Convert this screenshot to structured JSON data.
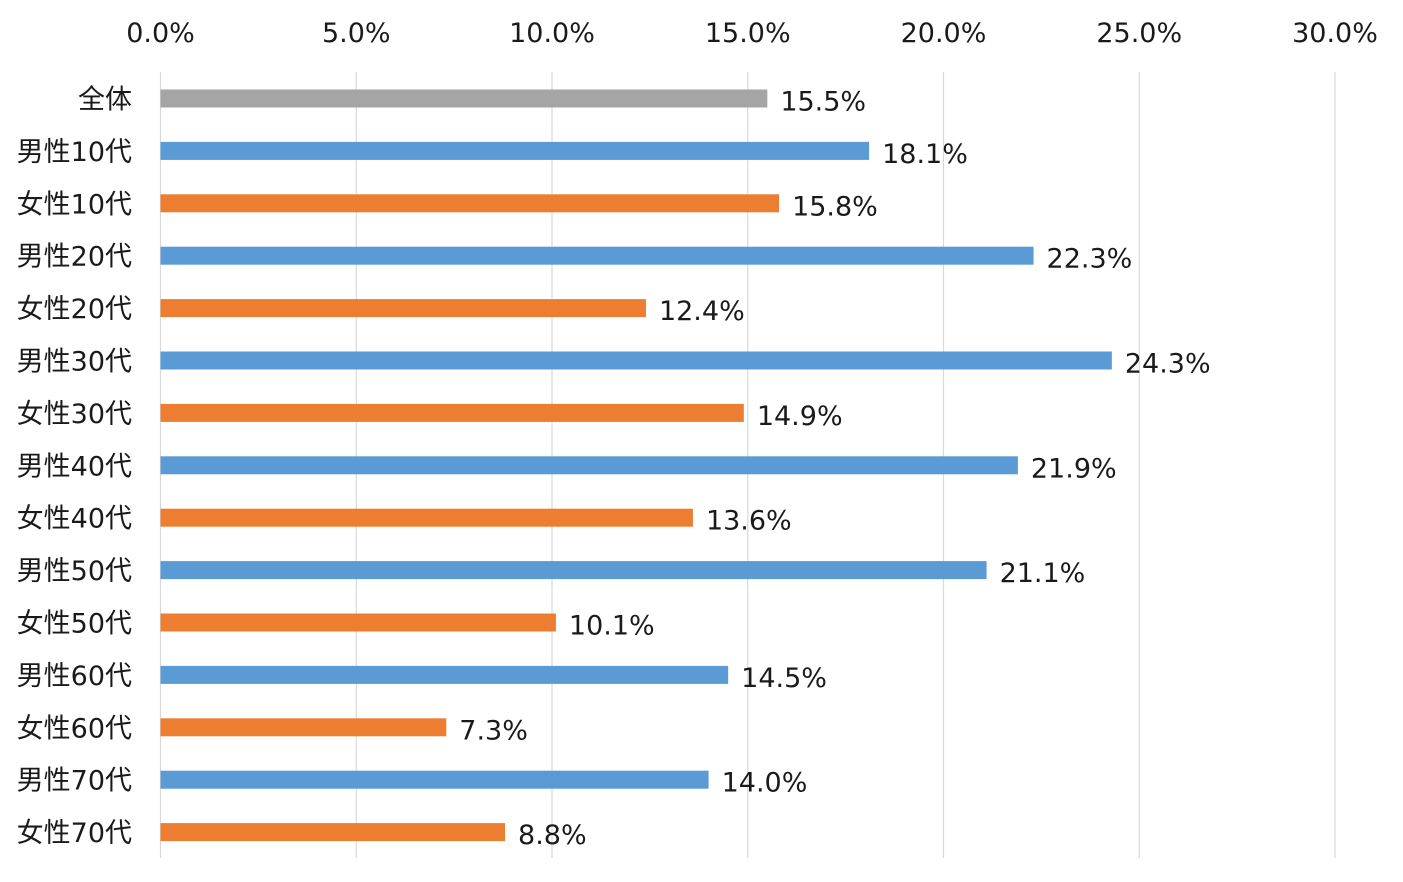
{
  "chart_data": {
    "type": "bar",
    "orientation": "horizontal",
    "title": "",
    "xlabel": "",
    "ylabel": "",
    "xlim": [
      0,
      30
    ],
    "x_ticks": [
      0,
      5,
      10,
      15,
      20,
      25,
      30
    ],
    "x_tick_labels": [
      "0.0%",
      "5.0%",
      "10.0%",
      "15.0%",
      "20.0%",
      "25.0%",
      "30.0%"
    ],
    "x_axis_position": "top",
    "grid": true,
    "legend": "none",
    "categories": [
      "全体",
      "男性10代",
      "女性10代",
      "男性20代",
      "女性20代",
      "男性30代",
      "女性30代",
      "男性40代",
      "女性40代",
      "男性50代",
      "女性50代",
      "男性60代",
      "女性60代",
      "男性70代",
      "女性70代"
    ],
    "values": [
      15.5,
      18.1,
      15.8,
      22.3,
      12.4,
      24.3,
      14.9,
      21.9,
      13.6,
      21.1,
      10.1,
      14.5,
      7.3,
      14.0,
      8.8
    ],
    "value_labels": [
      "15.5%",
      "18.1%",
      "15.8%",
      "22.3%",
      "12.4%",
      "24.3%",
      "14.9%",
      "21.9%",
      "13.6%",
      "21.1%",
      "10.1%",
      "14.5%",
      "7.3%",
      "14.0%",
      "8.8%"
    ],
    "colors": {
      "overall": "#a5a5a5",
      "male": "#5b9bd5",
      "female": "#ed7d31",
      "grid": "#d9d9d9"
    },
    "bar_color_keys": [
      "overall",
      "male",
      "female",
      "male",
      "female",
      "male",
      "female",
      "male",
      "female",
      "male",
      "female",
      "male",
      "female",
      "male",
      "female"
    ]
  }
}
